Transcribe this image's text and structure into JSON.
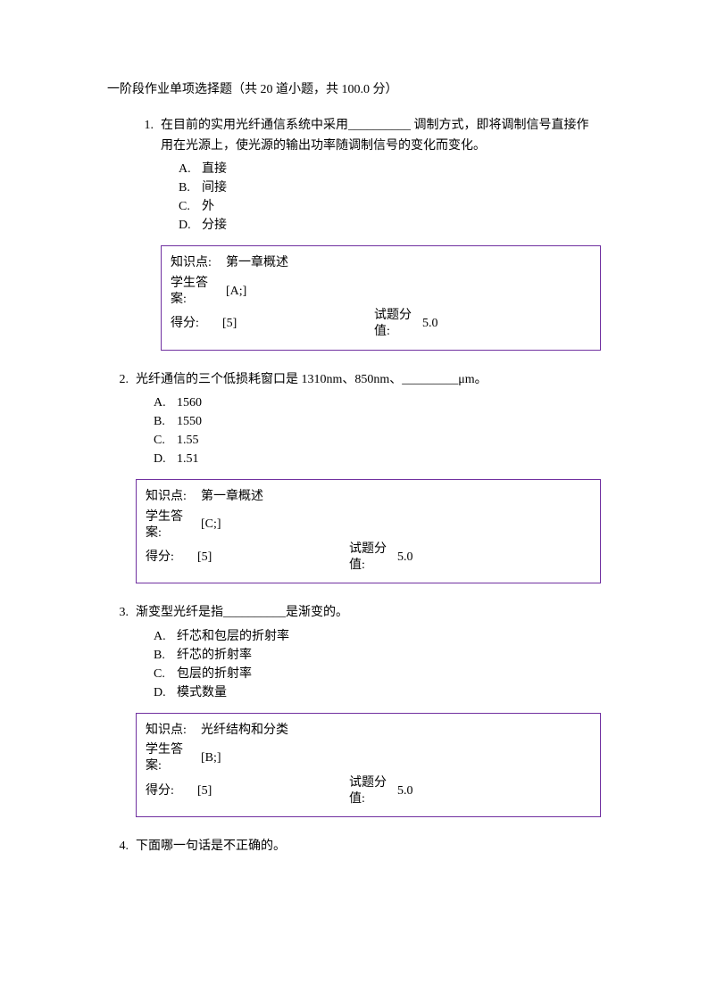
{
  "header": "一阶段作业单项选择题（共 20 道小题，共 100.0 分）",
  "questions": [
    {
      "num": "1.",
      "text": "在目前的实用光纤通信系统中采用__________ 调制方式，即将调制信号直接作用在光源上，使光源的输出功率随调制信号的变化而变化。",
      "options": [
        {
          "letter": "A.",
          "text": "直接"
        },
        {
          "letter": "B.",
          "text": "间接"
        },
        {
          "letter": "C.",
          "text": "外"
        },
        {
          "letter": "D.",
          "text": "分接"
        }
      ],
      "answer": {
        "knowledge_label": "知识点:",
        "knowledge": "第一章概述",
        "student_label_line1": "学生答",
        "student_label_line2": "案:",
        "student_answer": "[A;]",
        "score_label": "得分:",
        "score": "[5]",
        "value_label_line1": "试题分",
        "value_label_line2": "值:",
        "value": "5.0"
      }
    },
    {
      "num": "2.",
      "text": "光纤通信的三个低损耗窗口是 1310nm、850nm、_________μm。",
      "options": [
        {
          "letter": "A.",
          "text": "1560"
        },
        {
          "letter": "B.",
          "text": "1550"
        },
        {
          "letter": "C.",
          "text": "1.55"
        },
        {
          "letter": "D.",
          "text": "1.51"
        }
      ],
      "answer": {
        "knowledge_label": "知识点:",
        "knowledge": "第一章概述",
        "student_label_line1": "学生答",
        "student_label_line2": "案:",
        "student_answer": "[C;]",
        "score_label": "得分:",
        "score": "[5]",
        "value_label_line1": "试题分",
        "value_label_line2": "值:",
        "value": "5.0"
      }
    },
    {
      "num": "3.",
      "text": "渐变型光纤是指__________是渐变的。",
      "options": [
        {
          "letter": "A.",
          "text": "纤芯和包层的折射率"
        },
        {
          "letter": "B.",
          "text": "纤芯的折射率"
        },
        {
          "letter": "C.",
          "text": "包层的折射率"
        },
        {
          "letter": "D.",
          "text": "模式数量"
        }
      ],
      "answer": {
        "knowledge_label": "知识点:",
        "knowledge": "光纤结构和分类",
        "student_label_line1": "学生答",
        "student_label_line2": "案:",
        "student_answer": "[B;]",
        "score_label": "得分:",
        "score": "[5]",
        "value_label_line1": "试题分",
        "value_label_line2": "值:",
        "value": "5.0"
      }
    },
    {
      "num": "4.",
      "text": "下面哪一句话是不正确的。",
      "options": [],
      "answer": null
    }
  ],
  "styles": {
    "border_color": "#7030a0",
    "text_color": "#000000",
    "background_color": "#ffffff",
    "font_size_pt": 10.5,
    "font_family": "SimSun"
  }
}
